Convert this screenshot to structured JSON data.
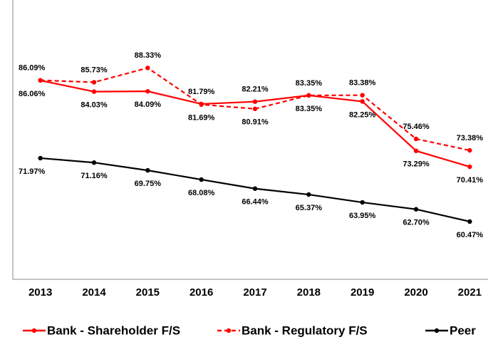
{
  "chart_data": {
    "type": "line",
    "categories": [
      "2013",
      "2014",
      "2015",
      "2016",
      "2017",
      "2018",
      "2019",
      "2020",
      "2021"
    ],
    "ylim": [
      50,
      100
    ],
    "series": [
      {
        "name": "Bank - Shareholder F/S",
        "color": "#ff0000",
        "dash": false,
        "values": [
          86.06,
          84.03,
          84.09,
          81.79,
          82.21,
          83.35,
          82.25,
          73.29,
          70.41
        ],
        "value_labels": [
          "86.06%",
          "84.03%",
          "84.09%",
          "81.79%",
          "82.21%",
          "83.35%",
          "82.25%",
          "73.29%",
          "70.41%"
        ]
      },
      {
        "name": "Bank - Regulatory F/S",
        "color": "#ff0000",
        "dash": true,
        "values": [
          86.09,
          85.73,
          88.33,
          81.69,
          80.91,
          83.35,
          83.38,
          75.46,
          73.38
        ],
        "value_labels": [
          "86.09%",
          "85.73%",
          "88.33%",
          "81.69%",
          "80.91%",
          "83.35%",
          "83.38%",
          "75.46%",
          "73.38%"
        ]
      },
      {
        "name": "Peer",
        "color": "#000000",
        "dash": false,
        "values": [
          71.97,
          71.16,
          69.75,
          68.08,
          66.44,
          65.37,
          63.95,
          62.7,
          60.47
        ],
        "value_labels": [
          "71.97%",
          "71.16%",
          "69.75%",
          "68.08%",
          "66.44%",
          "65.37%",
          "63.95%",
          "62.70%",
          "60.47%"
        ]
      }
    ]
  }
}
